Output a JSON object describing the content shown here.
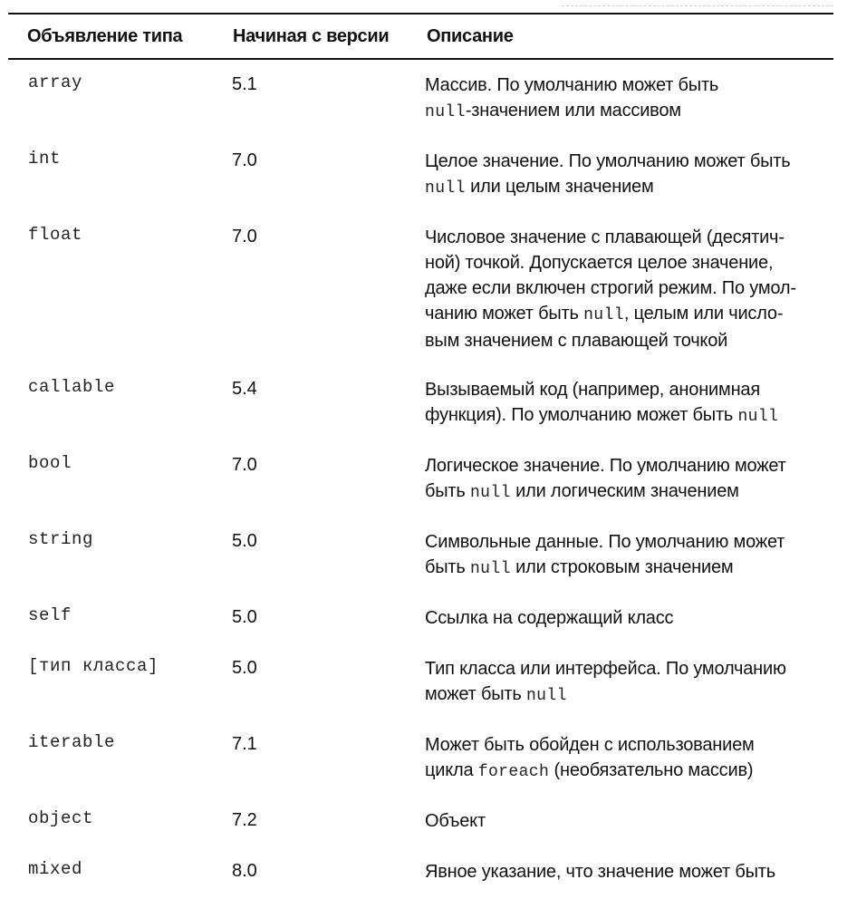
{
  "table": {
    "headers": [
      "Объявление типа",
      "Начиная с версии",
      "Описание"
    ],
    "rows": [
      {
        "type": "array",
        "version": "5.1",
        "desc": [
          [
            "t",
            "Массив. По умолчанию может быть"
          ],
          [
            "br",
            ""
          ],
          [
            "m",
            "null"
          ],
          [
            "t",
            "-значением или массивом"
          ]
        ]
      },
      {
        "type": "int",
        "version": "7.0",
        "desc": [
          [
            "t",
            "Целое значение. По умолчанию может быть"
          ],
          [
            "br",
            ""
          ],
          [
            "m",
            "null"
          ],
          [
            "t",
            " или целым значением"
          ]
        ]
      },
      {
        "type": "float",
        "version": "7.0",
        "desc": [
          [
            "t",
            "Числовое значение с плавающей (десятич-"
          ],
          [
            "br",
            ""
          ],
          [
            "t",
            "ной) точкой. Допускается целое значение,"
          ],
          [
            "br",
            ""
          ],
          [
            "t",
            "даже если включен строгий режим. По умол-"
          ],
          [
            "br",
            ""
          ],
          [
            "t",
            "чанию может быть "
          ],
          [
            "m",
            "null"
          ],
          [
            "t",
            ", целым или число-"
          ],
          [
            "br",
            ""
          ],
          [
            "t",
            "вым значением с плавающей точкой"
          ]
        ]
      },
      {
        "type": "callable",
        "version": "5.4",
        "desc": [
          [
            "t",
            "Вызываемый код (например, анонимная"
          ],
          [
            "br",
            ""
          ],
          [
            "t",
            "функция). По умолчанию может быть "
          ],
          [
            "m",
            "null"
          ]
        ]
      },
      {
        "type": "bool",
        "version": "7.0",
        "desc": [
          [
            "t",
            "Логическое значение. По умолчанию может"
          ],
          [
            "br",
            ""
          ],
          [
            "t",
            "быть "
          ],
          [
            "m",
            "null"
          ],
          [
            "t",
            " или логическим значением"
          ]
        ]
      },
      {
        "type": "string",
        "version": "5.0",
        "desc": [
          [
            "t",
            "Символьные данные. По умолчанию может"
          ],
          [
            "br",
            ""
          ],
          [
            "t",
            "быть "
          ],
          [
            "m",
            "null"
          ],
          [
            "t",
            " или строковым значением"
          ]
        ]
      },
      {
        "type": "self",
        "version": "5.0",
        "desc": [
          [
            "t",
            "Ссылка на содержащий класс"
          ]
        ]
      },
      {
        "type": "[тип класса]",
        "version": "5.0",
        "desc": [
          [
            "t",
            "Тип класса или интерфейса. По умолчанию"
          ],
          [
            "br",
            ""
          ],
          [
            "t",
            "может быть "
          ],
          [
            "m",
            "null"
          ]
        ]
      },
      {
        "type": "iterable",
        "version": "7.1",
        "desc": [
          [
            "t",
            "Может быть обойден с использованием"
          ],
          [
            "br",
            ""
          ],
          [
            "t",
            "цикла "
          ],
          [
            "m",
            "foreach"
          ],
          [
            "t",
            " (необязательно массив)"
          ]
        ]
      },
      {
        "type": "object",
        "version": "7.2",
        "desc": [
          [
            "t",
            "Объект"
          ]
        ]
      },
      {
        "type": "mixed",
        "version": "8.0",
        "desc": [
          [
            "t",
            "Явное указание, что значение может быть"
          ]
        ]
      }
    ]
  }
}
